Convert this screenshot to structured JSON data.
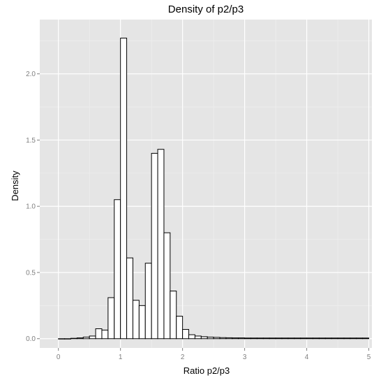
{
  "chart_data": {
    "type": "bar",
    "title": "Density of p2/p3",
    "xlabel": "Ratio p2/p3",
    "ylabel": "Density",
    "xlim": [
      -0.3,
      5.05
    ],
    "ylim": [
      -0.07,
      2.41
    ],
    "x_ticks": [
      "0",
      "1",
      "2",
      "3",
      "4",
      "5"
    ],
    "y_ticks": [
      "0.0",
      "0.5",
      "1.0",
      "1.5",
      "2.0"
    ],
    "grid": true,
    "bin_width": 0.1,
    "bin_start": 0.0,
    "values": [
      0.0,
      0.0,
      0.003,
      0.006,
      0.012,
      0.02,
      0.075,
      0.065,
      0.31,
      1.05,
      2.27,
      0.61,
      0.29,
      0.25,
      0.57,
      1.4,
      1.43,
      0.8,
      0.36,
      0.17,
      0.07,
      0.03,
      0.02,
      0.015,
      0.012,
      0.01,
      0.008,
      0.007,
      0.006,
      0.006,
      0.005,
      0.005,
      0.005,
      0.005,
      0.005,
      0.005,
      0.005,
      0.005,
      0.005,
      0.005,
      0.005,
      0.005,
      0.005,
      0.005,
      0.005,
      0.005,
      0.005,
      0.005,
      0.005,
      0.005
    ],
    "colors": {
      "panel": "#e5e5e5",
      "grid_major": "#ffffff",
      "grid_minor": "#f0f0f0",
      "bar_fill": "#ffffff",
      "bar_stroke": "#000000",
      "tick_label": "#7f7f7f"
    }
  }
}
